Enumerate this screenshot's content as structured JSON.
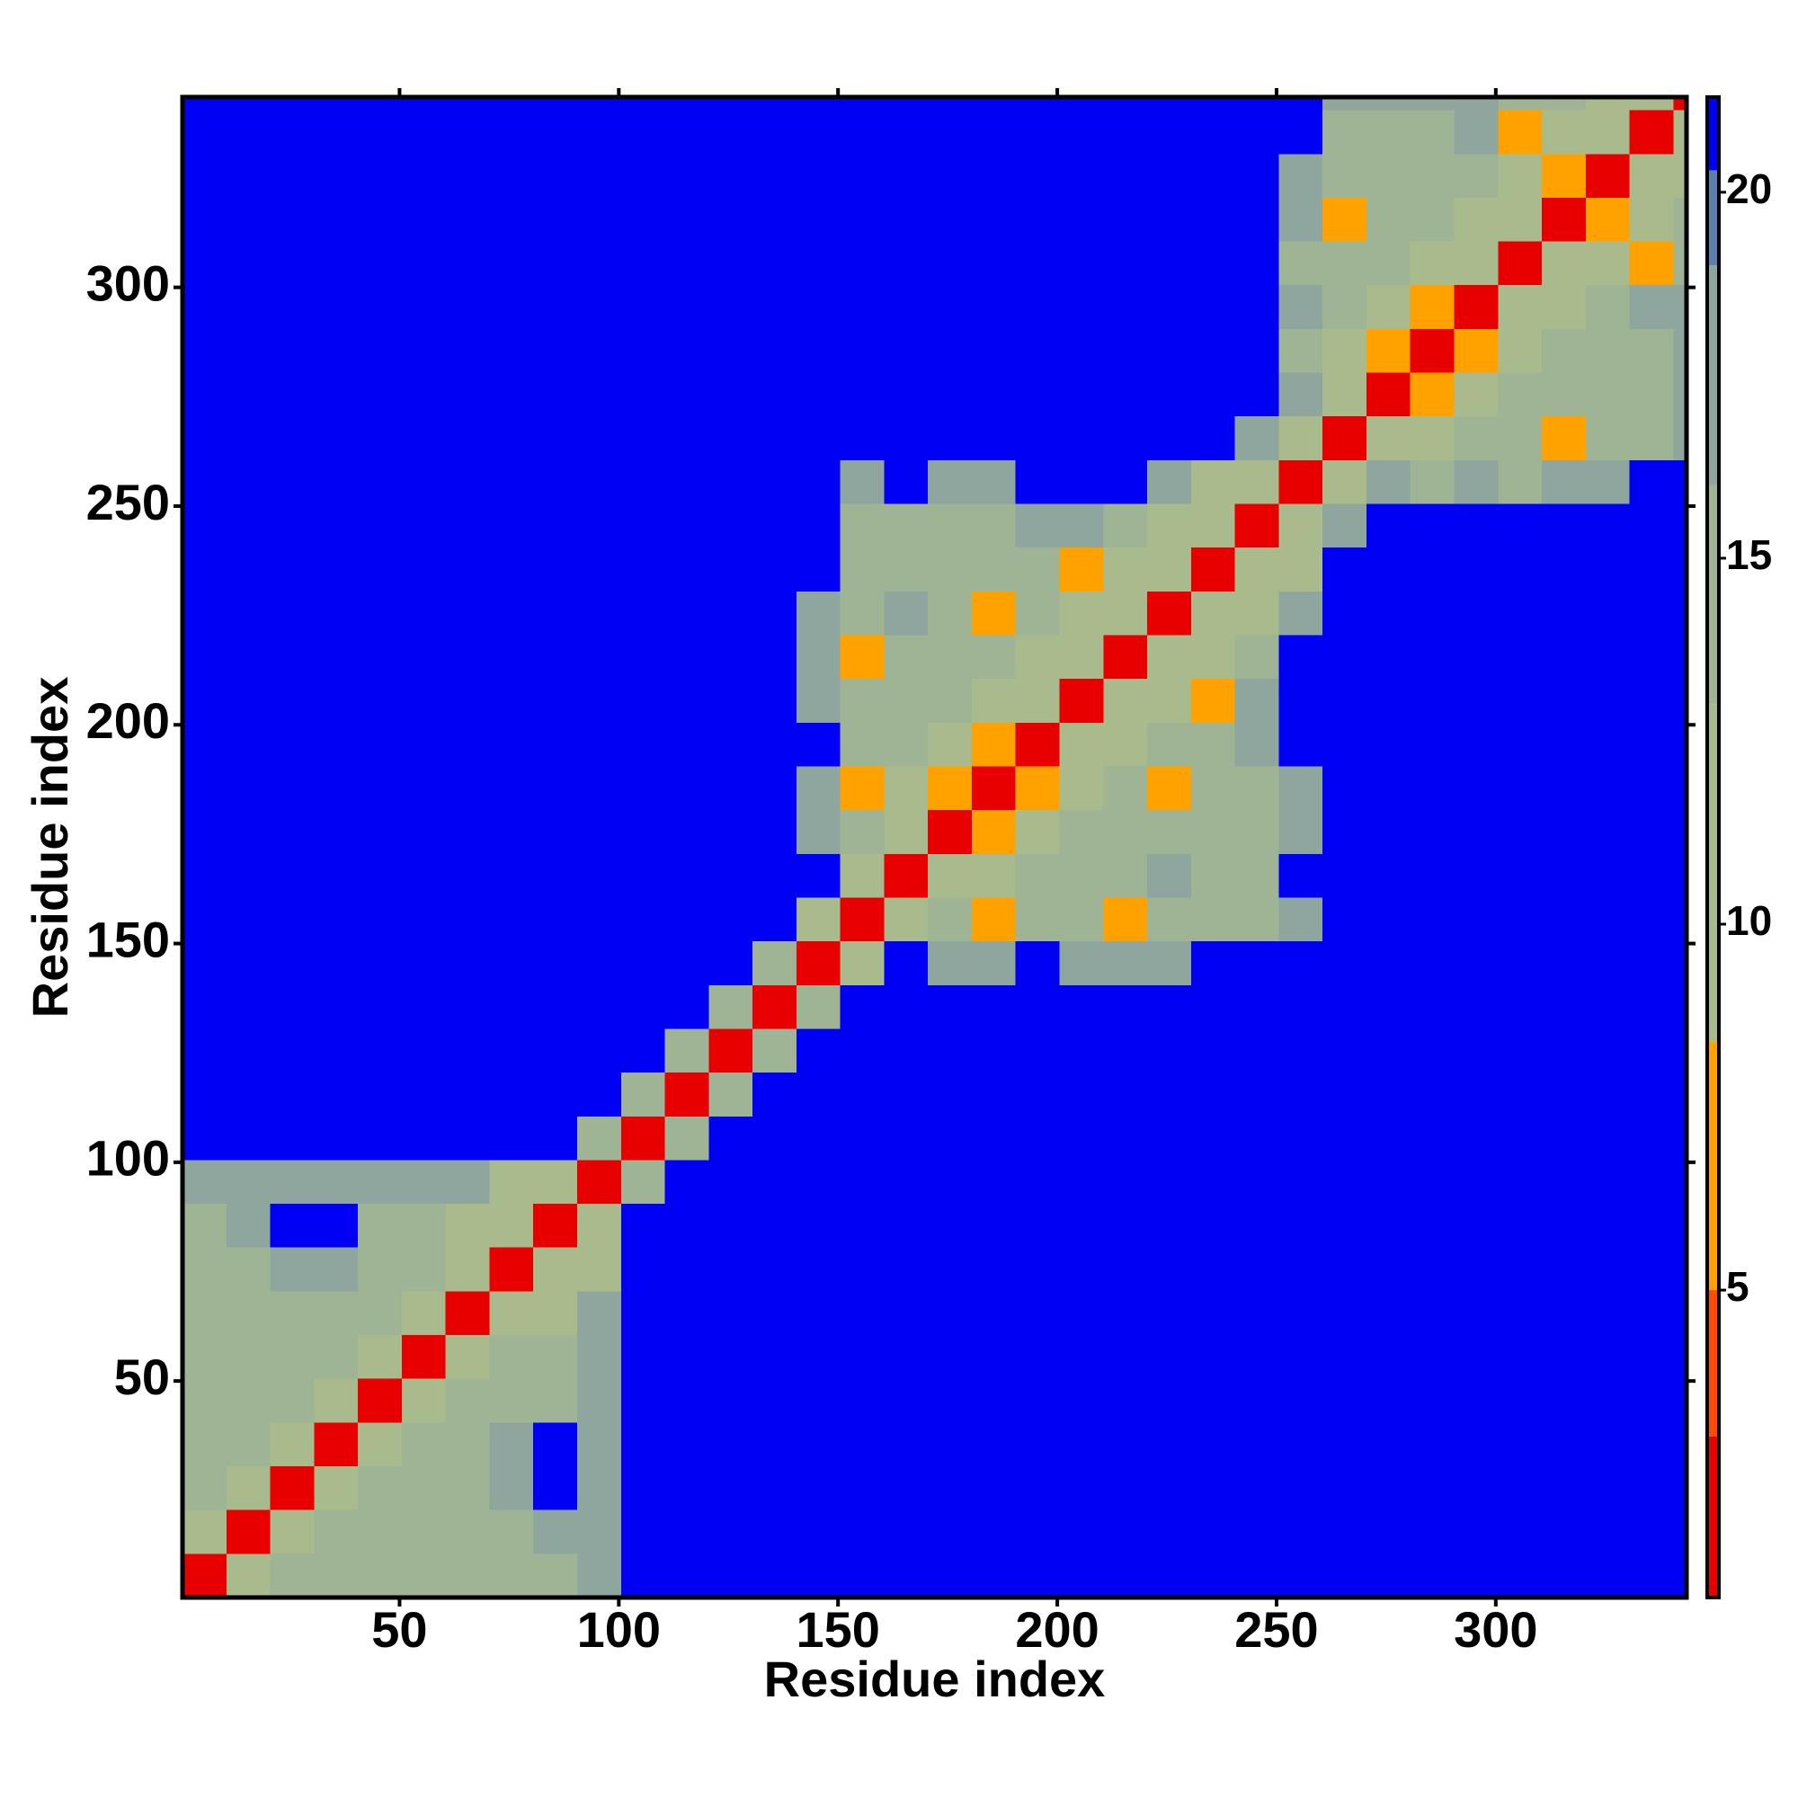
{
  "chart_data": {
    "type": "heatmap",
    "xlabel": "Residue index",
    "ylabel": "Residue index",
    "xlim": [
      0.5,
      343.5
    ],
    "ylim": [
      0.5,
      343.5
    ],
    "xticks": [
      50,
      100,
      150,
      200,
      250,
      300
    ],
    "yticks": [
      50,
      100,
      150,
      200,
      250,
      300
    ],
    "xbins": [
      0.5,
      10.5,
      20.5,
      30.5,
      40.5,
      50.5,
      60.5,
      70.5,
      80.5,
      90.5,
      100.5,
      110.5,
      120.5,
      130.5,
      140.5,
      150.5,
      160.5,
      170.5,
      180.5,
      190.5,
      200.5,
      210.5,
      220.5,
      230.5,
      240.5,
      250.5,
      260.5,
      270.5,
      280.5,
      290.5,
      300.5,
      310.5,
      320.5,
      330.5,
      340.5,
      343.5
    ],
    "ybins": [
      0.5,
      10.5,
      20.5,
      30.5,
      40.5,
      50.5,
      60.5,
      70.5,
      80.5,
      90.5,
      100.5,
      110.5,
      120.5,
      130.5,
      140.5,
      150.5,
      160.5,
      170.5,
      180.5,
      190.5,
      200.5,
      210.5,
      220.5,
      230.5,
      240.5,
      250.5,
      260.5,
      270.5,
      280.5,
      290.5,
      300.5,
      310.5,
      320.5,
      330.5,
      340.5,
      343.5
    ],
    "zlim": [
      0.8,
      21.3
    ],
    "zticks": [
      5,
      10,
      15,
      20
    ],
    "colorscale": [
      {
        "value": 3,
        "color": "#e80000"
      },
      {
        "value": 5,
        "color": "#ff4a00"
      },
      {
        "value": 8.4,
        "color": "#ffa200"
      },
      {
        "value": 13,
        "color": "#a9ba8c"
      },
      {
        "value": 16,
        "color": "#9fb395"
      },
      {
        "value": 19,
        "color": "#8fa69f"
      },
      {
        "value": 20.3,
        "color": "#5b7fae"
      },
      {
        "value": 21.3,
        "color": "#0000f5"
      }
    ],
    "z": [
      [
        3,
        10,
        15,
        15,
        15,
        15,
        15,
        15,
        15,
        18,
        21,
        21,
        21,
        21,
        21,
        21,
        21,
        21,
        21,
        21,
        21,
        21,
        21,
        21,
        21,
        21,
        21,
        21,
        21,
        21,
        21,
        21,
        21,
        21,
        21
      ],
      [
        10,
        3,
        10,
        15,
        15,
        15,
        15,
        15,
        18,
        18,
        21,
        21,
        21,
        21,
        21,
        21,
        21,
        21,
        21,
        21,
        21,
        21,
        21,
        21,
        21,
        21,
        21,
        21,
        21,
        21,
        21,
        21,
        21,
        21,
        21
      ],
      [
        15,
        10,
        3,
        10,
        15,
        15,
        15,
        18,
        21,
        18,
        21,
        21,
        21,
        21,
        21,
        21,
        21,
        21,
        21,
        21,
        21,
        21,
        21,
        21,
        21,
        21,
        21,
        21,
        21,
        21,
        21,
        21,
        21,
        21,
        21
      ],
      [
        15,
        15,
        10,
        3,
        10,
        15,
        15,
        18,
        21,
        18,
        21,
        21,
        21,
        21,
        21,
        21,
        21,
        21,
        21,
        21,
        21,
        21,
        21,
        21,
        21,
        21,
        21,
        21,
        21,
        21,
        21,
        21,
        21,
        21,
        21
      ],
      [
        15,
        15,
        15,
        10,
        3,
        10,
        15,
        15,
        15,
        18,
        21,
        21,
        21,
        21,
        21,
        21,
        21,
        21,
        21,
        21,
        21,
        21,
        21,
        21,
        21,
        21,
        21,
        21,
        21,
        21,
        21,
        21,
        21,
        21,
        21
      ],
      [
        15,
        15,
        15,
        15,
        10,
        3,
        10,
        15,
        15,
        18,
        21,
        21,
        21,
        21,
        21,
        21,
        21,
        21,
        21,
        21,
        21,
        21,
        21,
        21,
        21,
        21,
        21,
        21,
        21,
        21,
        21,
        21,
        21,
        21,
        21
      ],
      [
        15,
        15,
        15,
        15,
        15,
        10,
        3,
        10,
        12,
        18,
        21,
        21,
        21,
        21,
        21,
        21,
        21,
        21,
        21,
        21,
        21,
        21,
        21,
        21,
        21,
        21,
        21,
        21,
        21,
        21,
        21,
        21,
        21,
        21,
        21
      ],
      [
        15,
        15,
        18,
        18,
        15,
        15,
        10,
        3,
        10,
        12,
        21,
        21,
        21,
        21,
        21,
        21,
        21,
        21,
        21,
        21,
        21,
        21,
        21,
        21,
        21,
        21,
        21,
        21,
        21,
        21,
        21,
        21,
        21,
        21,
        21
      ],
      [
        15,
        18,
        21,
        21,
        15,
        15,
        12,
        10,
        3,
        10,
        21,
        21,
        21,
        21,
        21,
        21,
        21,
        21,
        21,
        21,
        21,
        21,
        21,
        21,
        21,
        21,
        21,
        21,
        21,
        21,
        21,
        21,
        21,
        21,
        21
      ],
      [
        18,
        18,
        18,
        18,
        18,
        18,
        18,
        12,
        10,
        3,
        16,
        21,
        21,
        21,
        21,
        21,
        21,
        21,
        21,
        21,
        21,
        21,
        21,
        21,
        21,
        21,
        21,
        21,
        21,
        21,
        21,
        21,
        21,
        21,
        21
      ],
      [
        21,
        21,
        21,
        21,
        21,
        21,
        21,
        21,
        21,
        16,
        3,
        16,
        21,
        21,
        21,
        21,
        21,
        21,
        21,
        21,
        21,
        21,
        21,
        21,
        21,
        21,
        21,
        21,
        21,
        21,
        21,
        21,
        21,
        21,
        21
      ],
      [
        21,
        21,
        21,
        21,
        21,
        21,
        21,
        21,
        21,
        21,
        16,
        3,
        16,
        21,
        21,
        21,
        21,
        21,
        21,
        21,
        21,
        21,
        21,
        21,
        21,
        21,
        21,
        21,
        21,
        21,
        21,
        21,
        21,
        21,
        21
      ],
      [
        21,
        21,
        21,
        21,
        21,
        21,
        21,
        21,
        21,
        21,
        21,
        16,
        3,
        16,
        21,
        21,
        21,
        21,
        21,
        21,
        21,
        21,
        21,
        21,
        21,
        21,
        21,
        21,
        21,
        21,
        21,
        21,
        21,
        21,
        21
      ],
      [
        21,
        21,
        21,
        21,
        21,
        21,
        21,
        21,
        21,
        21,
        21,
        21,
        16,
        3,
        16,
        21,
        21,
        21,
        21,
        21,
        21,
        21,
        21,
        21,
        21,
        21,
        21,
        21,
        21,
        21,
        21,
        21,
        21,
        21,
        21
      ],
      [
        21,
        21,
        21,
        21,
        21,
        21,
        21,
        21,
        21,
        21,
        21,
        21,
        21,
        16,
        3,
        12,
        21,
        18,
        18,
        21,
        18,
        18,
        18,
        21,
        21,
        21,
        21,
        21,
        21,
        21,
        21,
        21,
        21,
        21,
        21
      ],
      [
        21,
        21,
        21,
        21,
        21,
        21,
        21,
        21,
        21,
        21,
        21,
        21,
        21,
        21,
        12,
        3,
        12,
        15,
        8,
        15,
        15,
        8,
        15,
        15,
        16,
        18,
        21,
        21,
        21,
        21,
        21,
        21,
        21,
        21,
        21
      ],
      [
        21,
        21,
        21,
        21,
        21,
        21,
        21,
        21,
        21,
        21,
        21,
        21,
        21,
        21,
        21,
        12,
        3,
        10,
        12,
        15,
        15,
        15,
        17,
        16,
        16,
        21,
        21,
        21,
        21,
        21,
        21,
        21,
        21,
        21,
        21
      ],
      [
        21,
        21,
        21,
        21,
        21,
        21,
        21,
        21,
        21,
        21,
        21,
        21,
        21,
        21,
        18,
        15,
        10,
        3,
        8,
        12,
        15,
        15,
        15,
        16,
        16,
        17,
        21,
        21,
        21,
        21,
        21,
        21,
        21,
        21,
        21
      ],
      [
        21,
        21,
        21,
        21,
        21,
        21,
        21,
        21,
        21,
        21,
        21,
        21,
        21,
        21,
        18,
        8,
        12,
        8,
        3,
        8,
        12,
        15,
        8,
        15,
        16,
        17,
        21,
        21,
        21,
        21,
        21,
        21,
        21,
        21,
        21
      ],
      [
        21,
        21,
        21,
        21,
        21,
        21,
        21,
        21,
        21,
        21,
        21,
        21,
        21,
        21,
        21,
        15,
        15,
        12,
        8,
        3,
        10,
        12,
        15,
        15,
        17,
        21,
        21,
        21,
        21,
        21,
        21,
        21,
        21,
        21,
        21
      ],
      [
        21,
        21,
        21,
        21,
        21,
        21,
        21,
        21,
        21,
        21,
        21,
        21,
        21,
        21,
        18,
        15,
        15,
        15,
        12,
        10,
        3,
        10,
        12,
        8,
        17,
        21,
        21,
        21,
        21,
        21,
        21,
        21,
        21,
        21,
        21
      ],
      [
        21,
        21,
        21,
        21,
        21,
        21,
        21,
        21,
        21,
        21,
        21,
        21,
        21,
        21,
        18,
        8,
        15,
        15,
        15,
        12,
        10,
        3,
        10,
        12,
        15,
        21,
        21,
        21,
        21,
        21,
        21,
        21,
        21,
        21,
        21
      ],
      [
        21,
        21,
        21,
        21,
        21,
        21,
        21,
        21,
        21,
        21,
        21,
        21,
        21,
        21,
        18,
        15,
        17,
        15,
        8,
        15,
        12,
        10,
        3,
        10,
        12,
        18,
        21,
        21,
        21,
        21,
        21,
        21,
        21,
        21,
        21
      ],
      [
        21,
        21,
        21,
        21,
        21,
        21,
        21,
        21,
        21,
        21,
        21,
        21,
        21,
        21,
        21,
        15,
        16,
        16,
        15,
        15,
        8,
        12,
        10,
        3,
        10,
        12,
        21,
        21,
        21,
        21,
        21,
        21,
        21,
        21,
        21
      ],
      [
        21,
        21,
        21,
        21,
        21,
        21,
        21,
        21,
        21,
        21,
        21,
        21,
        21,
        21,
        21,
        16,
        16,
        16,
        16,
        17,
        17,
        15,
        12,
        10,
        3,
        10,
        18,
        21,
        21,
        21,
        21,
        21,
        21,
        21,
        21
      ],
      [
        21,
        21,
        21,
        21,
        21,
        21,
        21,
        21,
        21,
        21,
        21,
        21,
        21,
        21,
        21,
        18,
        21,
        17,
        17,
        21,
        21,
        21,
        18,
        12,
        10,
        3,
        10,
        17,
        16,
        17,
        16,
        17,
        18,
        21,
        21
      ],
      [
        21,
        21,
        21,
        21,
        21,
        21,
        21,
        21,
        21,
        21,
        21,
        21,
        21,
        21,
        21,
        21,
        21,
        21,
        21,
        21,
        21,
        21,
        21,
        21,
        18,
        10,
        3,
        10,
        12,
        15,
        15,
        8,
        15,
        16,
        18
      ],
      [
        21,
        21,
        21,
        21,
        21,
        21,
        21,
        21,
        21,
        21,
        21,
        21,
        21,
        21,
        21,
        21,
        21,
        21,
        21,
        21,
        21,
        21,
        21,
        21,
        21,
        17,
        10,
        3,
        8,
        12,
        15,
        15,
        15,
        16,
        17
      ],
      [
        21,
        21,
        21,
        21,
        21,
        21,
        21,
        21,
        21,
        21,
        21,
        21,
        21,
        21,
        21,
        21,
        21,
        21,
        21,
        21,
        21,
        21,
        21,
        21,
        21,
        16,
        12,
        8,
        3,
        8,
        12,
        15,
        15,
        15,
        17
      ],
      [
        21,
        21,
        21,
        21,
        21,
        21,
        21,
        21,
        21,
        21,
        21,
        21,
        21,
        21,
        21,
        21,
        21,
        21,
        21,
        21,
        21,
        21,
        21,
        21,
        21,
        17,
        15,
        12,
        8,
        3,
        10,
        12,
        15,
        17,
        18
      ],
      [
        21,
        21,
        21,
        21,
        21,
        21,
        21,
        21,
        21,
        21,
        21,
        21,
        21,
        21,
        21,
        21,
        21,
        21,
        21,
        21,
        21,
        21,
        21,
        21,
        21,
        16,
        15,
        15,
        12,
        10,
        3,
        10,
        12,
        8,
        15
      ],
      [
        21,
        21,
        21,
        21,
        21,
        21,
        21,
        21,
        21,
        21,
        21,
        21,
        21,
        21,
        21,
        21,
        21,
        21,
        21,
        21,
        21,
        21,
        21,
        21,
        21,
        17,
        8,
        15,
        15,
        12,
        10,
        3,
        8,
        12,
        15
      ],
      [
        21,
        21,
        21,
        21,
        21,
        21,
        21,
        21,
        21,
        21,
        21,
        21,
        21,
        21,
        21,
        21,
        21,
        21,
        21,
        21,
        21,
        21,
        21,
        21,
        21,
        18,
        15,
        15,
        15,
        15,
        12,
        8,
        3,
        10,
        12
      ],
      [
        21,
        21,
        21,
        21,
        21,
        21,
        21,
        21,
        21,
        21,
        21,
        21,
        21,
        21,
        21,
        21,
        21,
        21,
        21,
        21,
        21,
        21,
        21,
        21,
        21,
        21,
        16,
        16,
        15,
        17,
        8,
        12,
        10,
        3,
        10
      ],
      [
        21,
        21,
        21,
        21,
        21,
        21,
        21,
        21,
        21,
        21,
        21,
        21,
        21,
        21,
        21,
        21,
        21,
        21,
        21,
        21,
        21,
        21,
        21,
        21,
        21,
        21,
        18,
        17,
        17,
        18,
        15,
        15,
        12,
        10,
        3
      ]
    ]
  }
}
